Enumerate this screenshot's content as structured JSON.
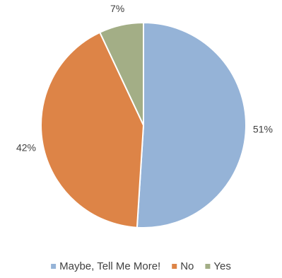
{
  "chart_data": {
    "type": "pie",
    "categories": [
      "Maybe, Tell Me More!",
      "No",
      "Yes"
    ],
    "values": [
      51,
      42,
      7
    ],
    "data_labels": [
      "51%",
      "42%",
      "7%"
    ],
    "colors": [
      "#95b3d7",
      "#dd8447",
      "#a3ae86"
    ],
    "start_angle_deg": 0,
    "direction": "clockwise",
    "legend_position": "bottom",
    "title": ""
  }
}
